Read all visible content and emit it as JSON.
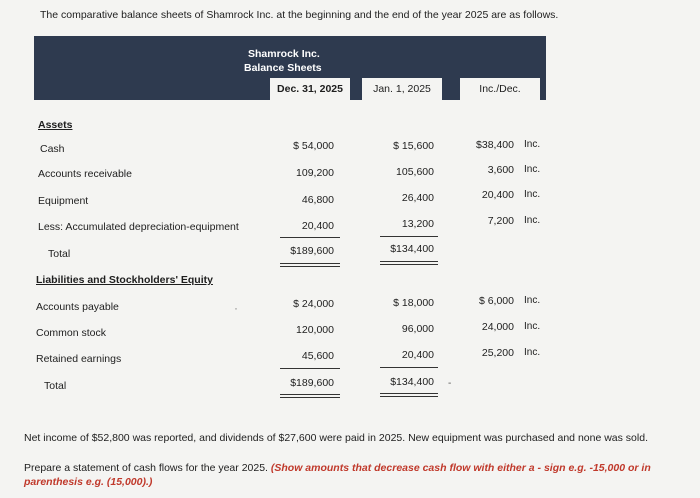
{
  "intro": "The comparative balance sheets of Shamrock Inc. at the beginning and the end of the year 2025 are as follows.",
  "header": {
    "company": "Shamrock Inc.",
    "statement": "Balance Sheets",
    "col1": "Dec. 31, 2025",
    "col2": "Jan. 1, 2025",
    "col3": "Inc./Dec."
  },
  "assets": {
    "heading": "Assets",
    "rows": [
      {
        "label": "Cash",
        "dec": "$ 54,000",
        "jan": "$ 15,600",
        "diff": "$38,400",
        "dir": "Inc."
      },
      {
        "label": "Accounts receivable",
        "dec": "109,200",
        "jan": "105,600",
        "diff": "3,600",
        "dir": "Inc."
      },
      {
        "label": "Equipment",
        "dec": "46,800",
        "jan": "26,400",
        "diff": "20,400",
        "dir": "Inc."
      },
      {
        "label": "Less: Accumulated depreciation-equipment",
        "dec": "20,400",
        "jan": "13,200",
        "diff": "7,200",
        "dir": "Inc."
      }
    ],
    "total": {
      "label": "Total",
      "dec": "$189,600",
      "jan": "$134,400"
    }
  },
  "liabilities": {
    "heading": "Liabilities and Stockholders' Equity",
    "rows": [
      {
        "label": "Accounts payable",
        "dec": "$ 24,000",
        "jan": "$ 18,000",
        "diff": "$ 6,000",
        "dir": "Inc."
      },
      {
        "label": "Common stock",
        "dec": "120,000",
        "jan": "96,000",
        "diff": "24,000",
        "dir": "Inc."
      },
      {
        "label": "Retained earnings",
        "dec": "45,600",
        "jan": "20,400",
        "diff": "25,200",
        "dir": "Inc."
      }
    ],
    "total": {
      "label": "Total",
      "dec": "$189,600",
      "jan": "$134,400"
    }
  },
  "net_income_note": "Net income of $52,800 was reported, and dividends of $27,600 were paid in 2025. New equipment was purchased and none was sold.",
  "instruction": {
    "lead": "Prepare a statement of cash flows for the year 2025.",
    "emphasis": "(Show amounts that decrease cash flow with either a - sign e.g. -15,000 or in parenthesis e.g. (15,000).)"
  }
}
